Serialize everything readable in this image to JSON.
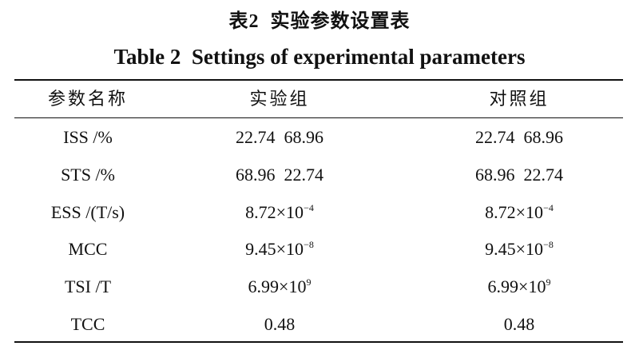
{
  "header": {
    "title_cn": "表2  实验参数设置表",
    "title_en": "Table 2  Settings of experimental parameters"
  },
  "table": {
    "columns": [
      "参数名称",
      "实验组",
      "对照组"
    ],
    "rows": [
      [
        "ISS /%",
        "22.74  68.96",
        "22.74  68.96"
      ],
      [
        "STS /%",
        "68.96  22.74",
        "68.96  22.74"
      ],
      [
        "ESS /(T/s)",
        {
          "base": "8.72×10",
          "sup": "−4"
        },
        {
          "base": "8.72×10",
          "sup": "−4"
        }
      ],
      [
        "MCC",
        {
          "base": "9.45×10",
          "sup": "−8"
        },
        {
          "base": "9.45×10",
          "sup": "−8"
        }
      ],
      [
        "TSI /T",
        {
          "base": "6.99×10",
          "sup": "9"
        },
        {
          "base": "6.99×10",
          "sup": "9"
        }
      ],
      [
        "TCC",
        "0.48",
        "0.48"
      ]
    ]
  }
}
